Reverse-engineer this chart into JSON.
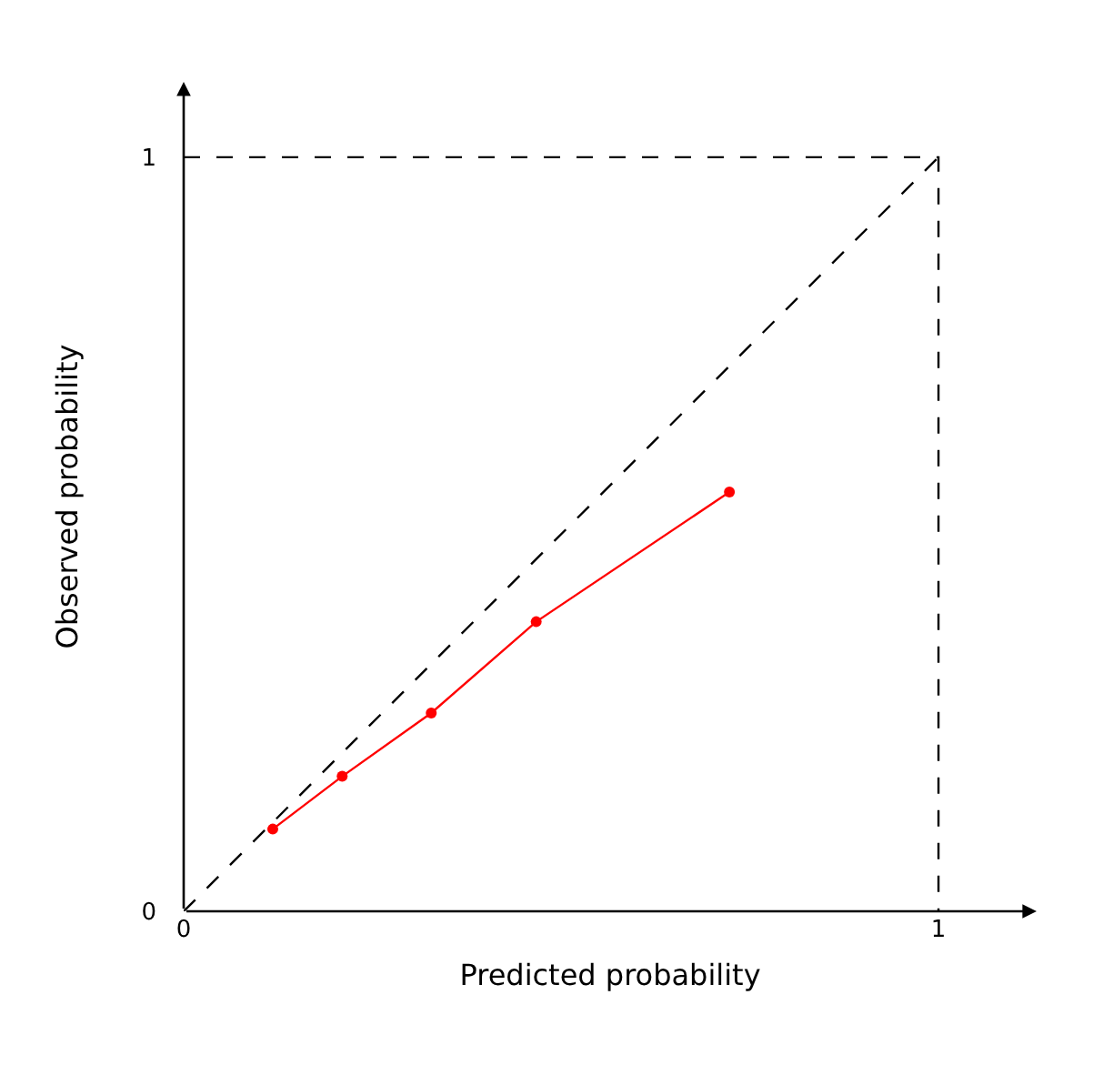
{
  "chart_data": {
    "type": "line",
    "xlabel": "Predicted probability",
    "ylabel": "Observed probability",
    "xlim": [
      0,
      1.13
    ],
    "ylim": [
      0,
      1.1
    ],
    "xticks": [
      0,
      1
    ],
    "yticks": [
      0,
      1
    ],
    "series": [
      {
        "color": "#000000",
        "x": [
          0,
          1
        ],
        "values": [
          0,
          1
        ],
        "line_style": "dashed",
        "marker": "none"
      },
      {
        "color": "#000000",
        "x": [
          0,
          1,
          1
        ],
        "values": [
          1,
          1,
          0
        ],
        "line_style": "dashed",
        "marker": "none"
      },
      {
        "color": "#ff0000",
        "x": [
          0.118,
          0.21,
          0.328,
          0.467,
          0.723
        ],
        "values": [
          0.109,
          0.179,
          0.263,
          0.384,
          0.556
        ],
        "line_style": "solid",
        "marker": "circle"
      }
    ]
  }
}
